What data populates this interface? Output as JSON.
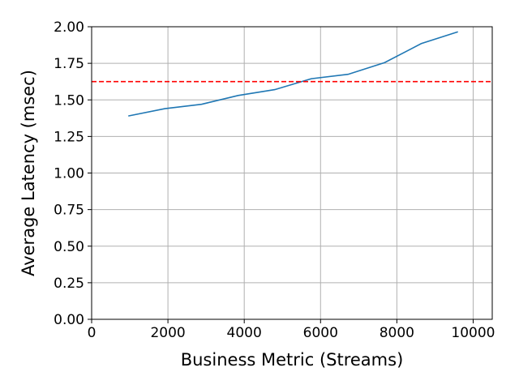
{
  "chart_data": {
    "type": "line",
    "title": "",
    "xlabel": "Business Metric (Streams)",
    "ylabel": "Average Latency (msec)",
    "xlim": [
      0,
      10500
    ],
    "ylim": [
      0,
      2.0
    ],
    "xticks": [
      0,
      2000,
      4000,
      6000,
      8000,
      10000
    ],
    "xtick_labels": [
      "0",
      "2000",
      "4000",
      "6000",
      "8000",
      "10000"
    ],
    "yticks": [
      0,
      0.25,
      0.5,
      0.75,
      1.0,
      1.25,
      1.5,
      1.75,
      2.0
    ],
    "ytick_labels": [
      "0.00",
      "0.25",
      "0.50",
      "0.75",
      "1.00",
      "1.25",
      "1.50",
      "1.75",
      "2.00"
    ],
    "grid": true,
    "series": [
      {
        "color": "#1f77b4",
        "x": [
          960,
          1920,
          2880,
          3840,
          4800,
          5760,
          6720,
          7680,
          8640,
          9600
        ],
        "y": [
          1.39,
          1.44,
          1.47,
          1.53,
          1.57,
          1.645,
          1.675,
          1.755,
          1.885,
          1.965
        ]
      }
    ],
    "reference_line": {
      "y": 1.625,
      "color": "#ff0000",
      "style": "dashed"
    }
  }
}
